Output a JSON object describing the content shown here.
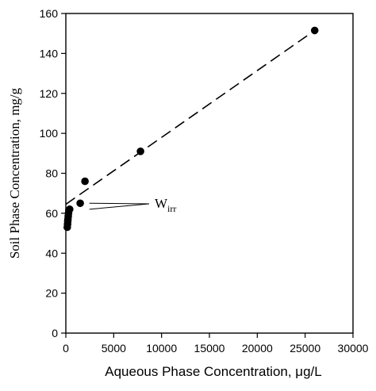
{
  "chart_data": {
    "type": "scatter",
    "xlabel": "Aqueous Phase Concentration, μg/L",
    "ylabel": "Soil Phase Concentration, mg/g",
    "xlim": [
      0,
      30000
    ],
    "ylim": [
      0,
      160
    ],
    "x_ticks": [
      0,
      5000,
      10000,
      15000,
      20000,
      25000,
      30000
    ],
    "y_ticks": [
      0,
      20,
      40,
      60,
      80,
      100,
      120,
      140,
      160
    ],
    "x_tick_labels": [
      "0",
      "5000",
      "10000",
      "15000",
      "20000",
      "25000",
      "30000"
    ],
    "y_tick_labels": [
      "0",
      "20",
      "40",
      "60",
      "80",
      "100",
      "120",
      "140",
      "160"
    ],
    "grid": false,
    "legend": "none",
    "series": [
      {
        "marker": "filled-circle",
        "color": "#000000",
        "points": [
          {
            "x": 150,
            "y": 53
          },
          {
            "x": 180,
            "y": 54.5
          },
          {
            "x": 200,
            "y": 56
          },
          {
            "x": 220,
            "y": 57
          },
          {
            "x": 250,
            "y": 58.5
          },
          {
            "x": 280,
            "y": 60
          },
          {
            "x": 320,
            "y": 61.5
          },
          {
            "x": 400,
            "y": 62
          },
          {
            "x": 1500,
            "y": 65
          },
          {
            "x": 2000,
            "y": 76
          },
          {
            "x": 7800,
            "y": 91
          },
          {
            "x": 26000,
            "y": 151.5
          }
        ]
      }
    ],
    "fit_line": {
      "style": "dashed",
      "color": "#000000",
      "from": {
        "x": 0,
        "y": 64.5
      },
      "to": {
        "x": 26000,
        "y": 151.5
      }
    },
    "annotation": {
      "text_main": "W",
      "text_sub": "irr",
      "arrow_targets": [
        {
          "x": 300,
          "y": 65
        },
        {
          "x": 300,
          "y": 62
        }
      ]
    }
  }
}
